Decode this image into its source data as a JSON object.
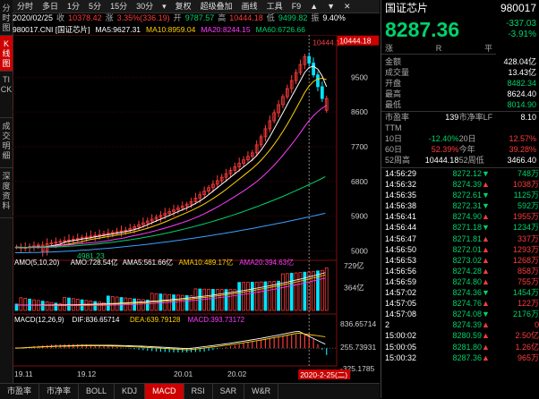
{
  "left_tabs": [
    {
      "label": "分时图",
      "active": false
    },
    {
      "label": "K线图",
      "active": true
    },
    {
      "label": "TICK",
      "active": false
    },
    {
      "label": "成交明细",
      "active": false
    },
    {
      "label": "深度资料",
      "active": false
    }
  ],
  "toolbar": [
    "分时",
    "多日",
    "1分",
    "5分",
    "15分",
    "30分",
    "▾",
    "复权",
    "超级叠加",
    "画线",
    "工具",
    "F9",
    "▲",
    "▼",
    "✕"
  ],
  "info": {
    "date": "2020/02/25",
    "open_label": "收",
    "open": "10378.42",
    "pct_label": "涨",
    "pct": "3.35%(336.19)",
    "high_label": "开",
    "high": "9787.57",
    "hi2_label": "高",
    "hi2": "10444.18",
    "lo_label": "低",
    "lo": "9499.82",
    "amp_label": "振",
    "amp": "9.40%"
  },
  "ma_bar": {
    "code": "980017.CNI [国证芯片]",
    "ma5": "MA5:9627.31",
    "ma10": "MA10:8959.04",
    "ma20": "MA20:8244.15",
    "ma60": "MA60:6726.66"
  },
  "y_axis": [
    "10444.18",
    "9500",
    "8600",
    "7700",
    "6800",
    "5900",
    "5000"
  ],
  "peak_label": "10444.18",
  "low_label": "4981.23",
  "vol_bar": {
    "name": "AMO(5,10,20)",
    "amo": "AMO:728.54亿",
    "ma5": "AMA5:561.66亿",
    "ma10": "AMA10:489.17亿",
    "ma20": "AMA20:394.63亿"
  },
  "vol_axis": [
    "729亿",
    "364亿"
  ],
  "macd_bar": {
    "name": "MACD(12,26,9)",
    "dif": "DIF:836.65714",
    "dea": "DEA:639.79128",
    "macd": "MACD:393.73172"
  },
  "macd_axis": [
    "836.65714",
    "255.73931",
    "-325.1785"
  ],
  "x_axis": [
    "19.11",
    "19.12",
    "20.01",
    "20.02"
  ],
  "cursor_date": "2020-2-25(二)",
  "bottom_tabs": [
    {
      "label": "市盈率",
      "active": false
    },
    {
      "label": "市净率",
      "active": false
    },
    {
      "label": "BOLL",
      "active": false
    },
    {
      "label": "KDJ",
      "active": false
    },
    {
      "label": "MACD",
      "active": true
    },
    {
      "label": "RSI",
      "active": false
    },
    {
      "label": "SAR",
      "active": false
    },
    {
      "label": "W&R",
      "active": false
    }
  ],
  "quote": {
    "name": "国证芯片",
    "code": "980017",
    "price": "8287.36",
    "change": "-337.03",
    "pct": "-3.91%",
    "b1": "涨",
    "b2": "R",
    "b3": "平",
    "stats": [
      {
        "l": "金额",
        "v": "428.04亿",
        "c": "white"
      },
      {
        "l": "成交量",
        "v": "13.43亿",
        "c": "white"
      },
      {
        "l": "开盘",
        "v": "8482.34",
        "c": "green"
      },
      {
        "l": "最高",
        "v": "8624.40",
        "c": "white"
      },
      {
        "l": "最低",
        "v": "8014.90",
        "c": "green"
      }
    ],
    "grid": [
      [
        "市盈率TTM",
        "139",
        "市净率LF",
        "8.10"
      ],
      [
        "10日",
        "-12.40%",
        "20日",
        "12.57%"
      ],
      [
        "60日",
        "52.39%",
        "今年",
        "39.28%"
      ],
      [
        "52周高",
        "10444.18",
        "52周低",
        "3466.40"
      ]
    ]
  },
  "ticks": [
    [
      "14:56:29",
      "8272.12",
      "▼",
      "748万"
    ],
    [
      "14:56:32",
      "8274.39",
      "▲",
      "1038万"
    ],
    [
      "14:56:35",
      "8272.61",
      "▼",
      "1125万"
    ],
    [
      "14:56:38",
      "8272.31",
      "▼",
      "592万"
    ],
    [
      "14:56:41",
      "8274.90",
      "▲",
      "1955万"
    ],
    [
      "14:56:44",
      "8271.18",
      "▼",
      "1234万"
    ],
    [
      "14:56:47",
      "8271.81",
      "▲",
      "337万"
    ],
    [
      "14:56:50",
      "8272.01",
      "▲",
      "1293万"
    ],
    [
      "14:56:53",
      "8273.02",
      "▲",
      "1268万"
    ],
    [
      "14:56:56",
      "8274.28",
      "▲",
      "858万"
    ],
    [
      "14:56:59",
      "8274.80",
      "▲",
      "755万"
    ],
    [
      "14:57:02",
      "8274.36",
      "▼",
      "1454万"
    ],
    [
      "14:57:05",
      "8274.76",
      "▲",
      "122万"
    ],
    [
      "14:57:08",
      "8274.08",
      "▼",
      "2176万"
    ],
    [
      "2",
      "8274.39",
      "▲",
      "0"
    ],
    [
      "15:00:02",
      "8280.59",
      "▲",
      "2.50亿"
    ],
    [
      "15:00:05",
      "8281.80",
      "▲",
      "1.26亿"
    ],
    [
      "15:00:32",
      "8287.36",
      "▲",
      "965万"
    ]
  ]
}
